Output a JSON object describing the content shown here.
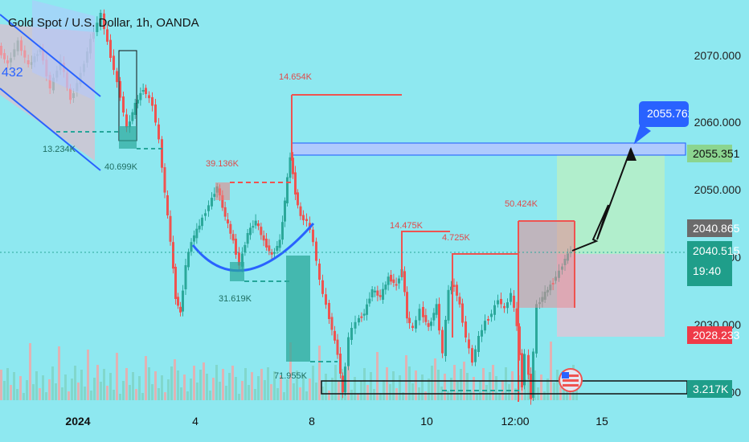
{
  "header": {
    "title": "Gold Spot / U.S. Dollar, 1h, OANDA"
  },
  "colors": {
    "bull": "#2ba89a",
    "bear": "#ef5350",
    "blue": "#2962ff",
    "bg": "#8ee8f0"
  },
  "chart_data": {
    "type": "candlestick",
    "symbol": "Gold Spot / U.S. Dollar",
    "interval": "1h",
    "source": "OANDA",
    "ylim": [
      2018.5,
      2073
    ],
    "y_ticks": [
      "2070.000",
      "2060.000",
      "2050.000",
      "2040.000",
      "2030.000",
      "2020.000"
    ],
    "x_ticks": [
      "2024",
      "4",
      "8",
      "10",
      "12:00",
      "15"
    ],
    "tags": {
      "target": "2055.762",
      "blue_zone": "2055.351",
      "take_level": "2040.865",
      "current_price": "2040.515",
      "countdown": "19:40",
      "stop_loss": "2028.233",
      "volume": "3.217K"
    },
    "truncated_label": "432",
    "volume_annotations": [
      "13.234K",
      "40.699K",
      "14.654K",
      "39.136K",
      "31.619K",
      "71.955K",
      "14.475K",
      "4.725K",
      "50.424K"
    ],
    "channel": {
      "direction": "descending"
    },
    "zones": [
      {
        "kind": "resistance",
        "from": 2054.3,
        "to": 2056.5
      },
      {
        "kind": "long-target",
        "from": 2040.515,
        "to": 2055.351
      },
      {
        "kind": "long-stop",
        "from": 2028.233,
        "to": 2040.515
      }
    ]
  }
}
